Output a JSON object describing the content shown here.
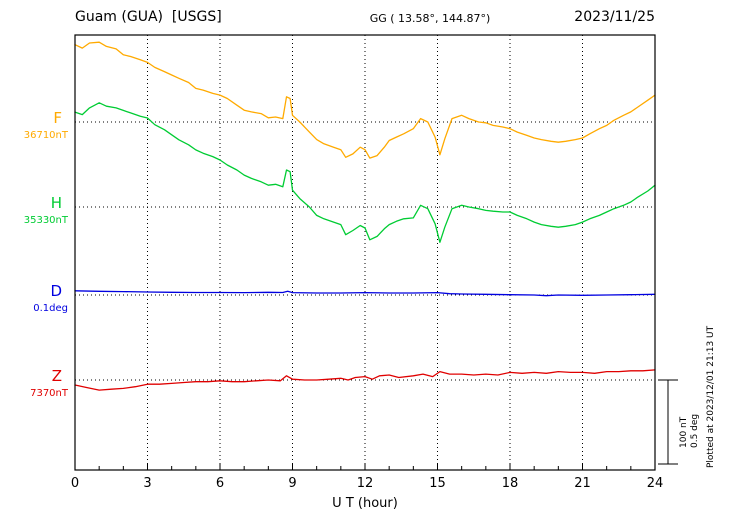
{
  "header": {
    "station": "Guam (GUA)  [USGS]",
    "coords": "GG ( 13.58°, 144.87°)",
    "date": "2023/11/25"
  },
  "side_note": "Plotted at 2023/12/01 21:13 UT",
  "scale_bar": {
    "line1": "100 nT",
    "line2": "0.5 deg"
  },
  "xaxis": {
    "label": "U T (hour)",
    "ticks": [
      0,
      3,
      6,
      9,
      12,
      15,
      18,
      21,
      24
    ],
    "range": [
      0,
      24
    ]
  },
  "traces": [
    {
      "id": "F",
      "label": "F",
      "baseline_label": "36710nT",
      "color": "#FFAA00"
    },
    {
      "id": "H",
      "label": "H",
      "baseline_label": "35330nT",
      "color": "#00CC33"
    },
    {
      "id": "D",
      "label": "D",
      "baseline_label": "0.1deg",
      "color": "#0000E0"
    },
    {
      "id": "Z",
      "label": "Z",
      "baseline_label": "7370nT",
      "color": "#E00000"
    }
  ],
  "chart_data": {
    "type": "line",
    "title": "Guam (GUA) [USGS] magnetogram",
    "date": "2023/11/25",
    "xlabel": "U T (hour)",
    "xlim": [
      0,
      24
    ],
    "grid": "dotted vertical every 3 h, dotted horizontal baseline per trace",
    "scale": {
      "nT_per_division": 100,
      "deg_per_division": 0.5
    },
    "series": [
      {
        "name": "F",
        "units": "nT",
        "baseline": 36710,
        "x": [
          0,
          0.3,
          0.6,
          1,
          1.3,
          1.7,
          2,
          2.3,
          2.7,
          3,
          3.3,
          3.7,
          4,
          4.3,
          4.7,
          5,
          5.3,
          5.7,
          6,
          6.3,
          6.7,
          7,
          7.3,
          7.7,
          8,
          8.3,
          8.6,
          8.75,
          8.9,
          9,
          9.3,
          9.7,
          10,
          10.3,
          10.7,
          11,
          11.2,
          11.5,
          11.8,
          12,
          12.2,
          12.5,
          12.8,
          13,
          13.3,
          13.6,
          14,
          14.3,
          14.6,
          14.9,
          15.1,
          15.3,
          15.6,
          16,
          16.3,
          16.7,
          17,
          17.3,
          17.7,
          18,
          18.3,
          18.7,
          19,
          19.3,
          19.7,
          20,
          20.3,
          20.7,
          21,
          21.3,
          21.7,
          22,
          22.3,
          22.7,
          23,
          23.3,
          23.7,
          24
        ],
        "offsets": [
          92,
          88,
          94,
          95,
          90,
          87,
          80,
          78,
          74,
          71,
          65,
          60,
          56,
          52,
          47,
          40,
          38,
          34,
          32,
          28,
          20,
          14,
          12,
          10,
          5,
          6,
          4,
          30,
          28,
          8,
          0,
          -12,
          -21,
          -26,
          -30,
          -33,
          -42,
          -38,
          -30,
          -33,
          -43,
          -40,
          -30,
          -22,
          -18,
          -14,
          -8,
          4,
          0,
          -18,
          -39,
          -20,
          4,
          8,
          4,
          0,
          -1,
          -4,
          -6,
          -8,
          -12,
          -16,
          -19,
          -21,
          -23,
          -24,
          -23,
          -21,
          -19,
          -14,
          -8,
          -4,
          2,
          8,
          12,
          18,
          26,
          32
        ]
      },
      {
        "name": "H",
        "units": "nT",
        "baseline": 35330,
        "x": [
          0,
          0.3,
          0.6,
          1,
          1.3,
          1.7,
          2,
          2.3,
          2.7,
          3,
          3.3,
          3.7,
          4,
          4.3,
          4.7,
          5,
          5.3,
          5.7,
          6,
          6.3,
          6.7,
          7,
          7.3,
          7.7,
          8,
          8.3,
          8.6,
          8.75,
          8.9,
          9,
          9.3,
          9.7,
          10,
          10.3,
          10.7,
          11,
          11.2,
          11.5,
          11.8,
          12,
          12.2,
          12.5,
          12.8,
          13,
          13.3,
          13.6,
          14,
          14.3,
          14.6,
          14.9,
          15.1,
          15.3,
          15.6,
          16,
          16.3,
          16.7,
          17,
          17.3,
          17.7,
          18,
          18.3,
          18.7,
          19,
          19.3,
          19.7,
          20,
          20.3,
          20.7,
          21,
          21.3,
          21.7,
          22,
          22.3,
          22.7,
          23,
          23.3,
          23.7,
          24
        ],
        "offsets": [
          113,
          110,
          118,
          124,
          120,
          118,
          115,
          112,
          108,
          106,
          98,
          92,
          86,
          80,
          74,
          68,
          64,
          60,
          56,
          50,
          44,
          38,
          34,
          30,
          26,
          27,
          24,
          44,
          42,
          20,
          10,
          0,
          -10,
          -14,
          -18,
          -21,
          -33,
          -28,
          -22,
          -25,
          -39,
          -35,
          -26,
          -21,
          -17,
          -14,
          -13,
          2,
          -2,
          -20,
          -42,
          -24,
          -2,
          2,
          0,
          -2,
          -4,
          -5,
          -6,
          -6,
          -10,
          -14,
          -18,
          -21,
          -23,
          -24,
          -23,
          -21,
          -18,
          -14,
          -10,
          -6,
          -2,
          2,
          6,
          12,
          19,
          26
        ]
      },
      {
        "name": "D",
        "units": "deg",
        "baseline": 0.1,
        "x": [
          0,
          1,
          2,
          3,
          4,
          5,
          6,
          7,
          8,
          8.6,
          8.8,
          9,
          10,
          11,
          12,
          13,
          14,
          15,
          15.5,
          16,
          17,
          18,
          19,
          19.5,
          20,
          21,
          22,
          23,
          24
        ],
        "offsets": [
          0.025,
          0.022,
          0.02,
          0.018,
          0.016,
          0.015,
          0.015,
          0.014,
          0.016,
          0.015,
          0.022,
          0.014,
          0.012,
          0.012,
          0.014,
          0.012,
          0.012,
          0.014,
          0.008,
          0.006,
          0.004,
          0.002,
          0,
          -0.004,
          0,
          -0.002,
          0,
          0.002,
          0.004
        ]
      },
      {
        "name": "Z",
        "units": "nT",
        "baseline": 7370,
        "x": [
          0,
          0.5,
          1,
          1.5,
          2,
          2.5,
          3,
          3.5,
          4,
          4.5,
          5,
          5.5,
          6,
          6.5,
          7,
          7.5,
          8,
          8.5,
          8.75,
          9,
          9.5,
          10,
          10.5,
          11,
          11.3,
          11.6,
          12,
          12.3,
          12.6,
          13,
          13.4,
          14,
          14.4,
          14.8,
          15.1,
          15.5,
          16,
          16.5,
          17,
          17.5,
          18,
          18.5,
          19,
          19.5,
          20,
          20.5,
          21,
          21.5,
          22,
          22.5,
          23,
          23.5,
          24
        ],
        "offsets": [
          -6,
          -9,
          -12,
          -11,
          -10,
          -8,
          -5,
          -5,
          -4,
          -3,
          -2,
          -2,
          -1,
          -2,
          -2,
          -1,
          0,
          -1,
          5,
          1,
          0,
          0,
          1,
          2,
          0,
          3,
          4,
          1,
          5,
          6,
          3,
          5,
          7,
          4,
          10,
          7,
          7,
          6,
          7,
          6,
          9,
          8,
          9,
          8,
          10,
          9,
          9,
          8,
          10,
          10,
          11,
          11,
          12
        ]
      }
    ]
  }
}
